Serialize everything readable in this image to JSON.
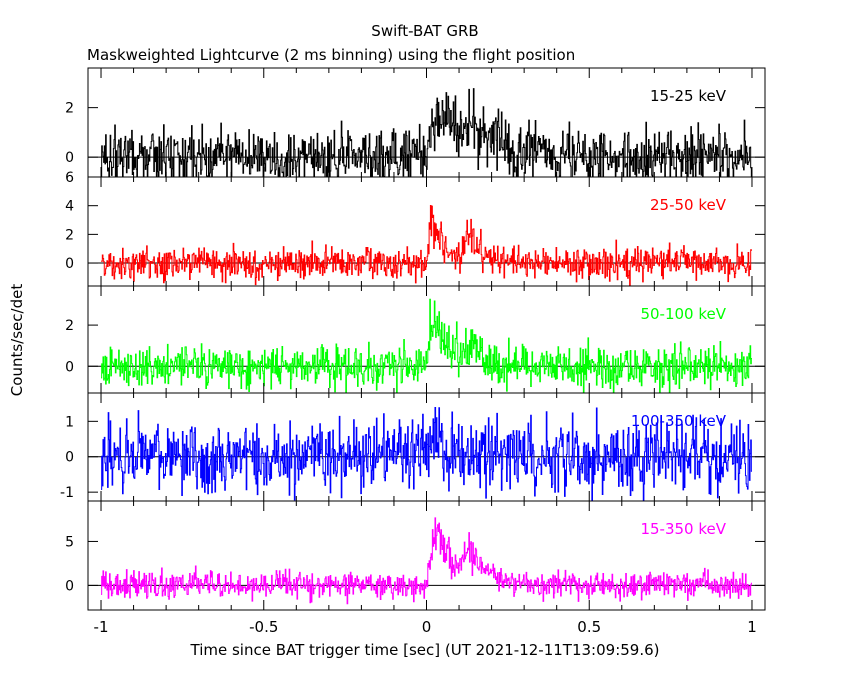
{
  "chart_data": {
    "type": "line",
    "title": "Swift-BAT GRB",
    "subtitle": "Maskweighted Lightcurve (2 ms binning) using the flight position",
    "xlabel": "Time since BAT trigger time [sec] (UT 2021-12-11T13:09:59.6)",
    "ylabel": "Counts/sec/det",
    "xlim": [
      -1.04,
      1.04
    ],
    "x_ticks": [
      -1,
      -0.5,
      0,
      0.5,
      1
    ],
    "x_tick_labels": [
      "-1",
      "-0.5",
      "0",
      "0.5",
      "1"
    ],
    "bin_width_sec": 0.002,
    "x_range": [
      -1.0,
      1.0
    ],
    "panels": [
      {
        "band": "15-25 keV",
        "color": "#000000",
        "ylim": [
          -0.8,
          3.6
        ],
        "y_ticks": [
          0,
          2
        ],
        "y_tick_labels": [
          "0",
          "2"
        ],
        "noise_sigma": 0.55,
        "pulses": [
          {
            "t_start": 0.0,
            "t_peak": 0.03,
            "amplitude": 2.1,
            "decay": 0.1
          },
          {
            "t_start": 0.1,
            "t_peak": 0.13,
            "amplitude": 0.9,
            "decay": 0.06
          }
        ]
      },
      {
        "band": "25-50 keV",
        "color": "#ff0000",
        "ylim": [
          -1.6,
          6.0
        ],
        "y_ticks": [
          0,
          2,
          4,
          6
        ],
        "y_tick_labels": [
          "0",
          "2",
          "4",
          "6"
        ],
        "noise_sigma": 0.55,
        "pulses": [
          {
            "t_start": 0.0,
            "t_peak": 0.015,
            "amplitude": 3.2,
            "decay": 0.05
          },
          {
            "t_start": 0.1,
            "t_peak": 0.13,
            "amplitude": 2.0,
            "decay": 0.04
          }
        ]
      },
      {
        "band": "50-100 keV",
        "color": "#00ff00",
        "ylim": [
          -1.3,
          3.9
        ],
        "y_ticks": [
          0,
          2
        ],
        "y_tick_labels": [
          "0",
          "2"
        ],
        "noise_sigma": 0.5,
        "pulses": [
          {
            "t_start": 0.0,
            "t_peak": 0.015,
            "amplitude": 2.5,
            "decay": 0.05
          },
          {
            "t_start": 0.1,
            "t_peak": 0.13,
            "amplitude": 0.8,
            "decay": 0.04
          }
        ]
      },
      {
        "band": "100-350 keV",
        "color": "#0000ff",
        "ylim": [
          -1.25,
          1.8
        ],
        "y_ticks": [
          -1,
          0,
          1
        ],
        "y_tick_labels": [
          "-1",
          "0",
          "1"
        ],
        "noise_sigma": 0.5,
        "pulses": [
          {
            "t_start": 0.0,
            "t_peak": 0.02,
            "amplitude": 0.7,
            "decay": 0.04
          }
        ]
      },
      {
        "band": "15-350 keV",
        "color": "#ff00ff",
        "ylim": [
          -2.8,
          9.6
        ],
        "y_ticks": [
          0,
          5
        ],
        "y_tick_labels": [
          "0",
          "5"
        ],
        "noise_sigma": 0.75,
        "pulses": [
          {
            "t_start": 0.0,
            "t_peak": 0.025,
            "amplitude": 6.5,
            "decay": 0.07
          },
          {
            "t_start": 0.1,
            "t_peak": 0.13,
            "amplitude": 3.2,
            "decay": 0.045
          }
        ]
      }
    ]
  }
}
